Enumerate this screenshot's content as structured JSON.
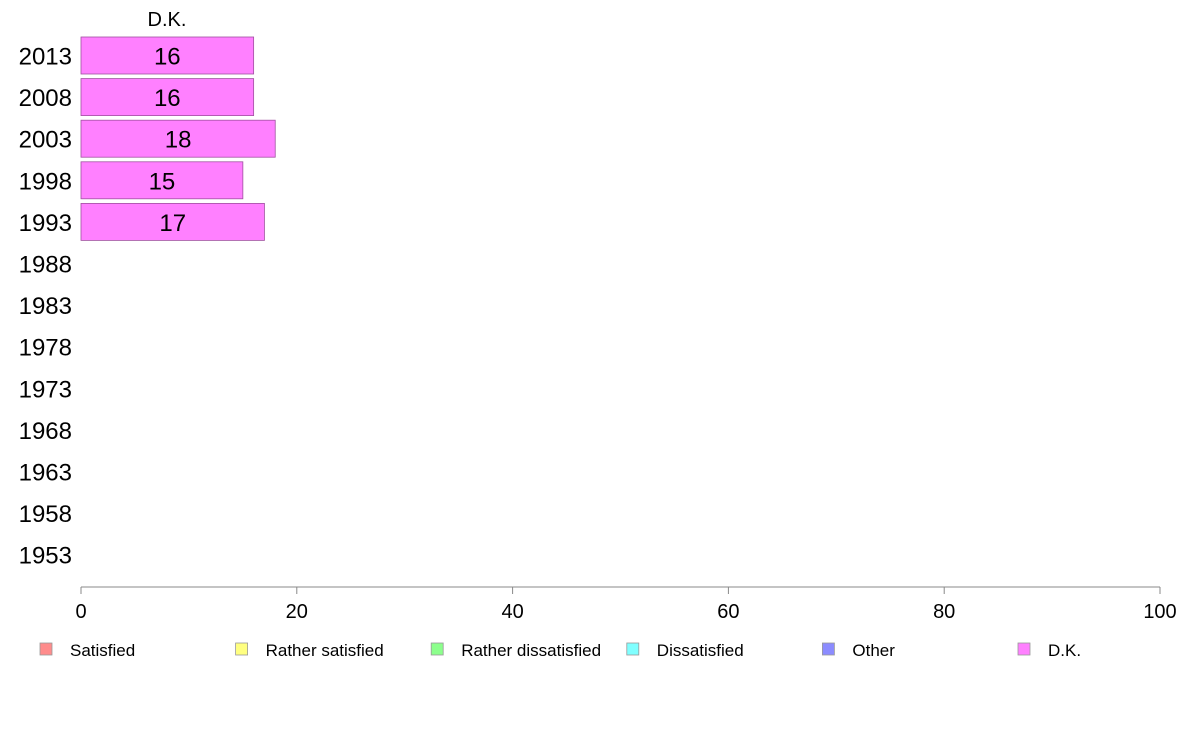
{
  "chart_data": {
    "type": "bar",
    "orientation": "horizontal",
    "title": "",
    "panel_title": "D.K.",
    "xlabel": "",
    "ylabel": "",
    "xlim": [
      0,
      100
    ],
    "x_ticks": [
      0,
      20,
      40,
      60,
      80,
      100
    ],
    "categories": [
      "2013",
      "2008",
      "2003",
      "1998",
      "1993",
      "1988",
      "1983",
      "1978",
      "1973",
      "1968",
      "1963",
      "1958",
      "1953"
    ],
    "series": [
      {
        "name": "D.K.",
        "color": "#ff80ff",
        "values": [
          16,
          16,
          18,
          15,
          17,
          null,
          null,
          null,
          null,
          null,
          null,
          null,
          null
        ]
      }
    ],
    "legend": {
      "placement": "bottom",
      "items": [
        {
          "label": "Satisfied",
          "color": "#ff8c8c"
        },
        {
          "label": "Rather satisfied",
          "color": "#ffff80"
        },
        {
          "label": "Rather dissatisfied",
          "color": "#8cff8c"
        },
        {
          "label": "Dissatisfied",
          "color": "#80ffff"
        },
        {
          "label": "Other",
          "color": "#8c8cff"
        },
        {
          "label": "D.K.",
          "color": "#ff80ff"
        }
      ]
    },
    "grid": false
  }
}
